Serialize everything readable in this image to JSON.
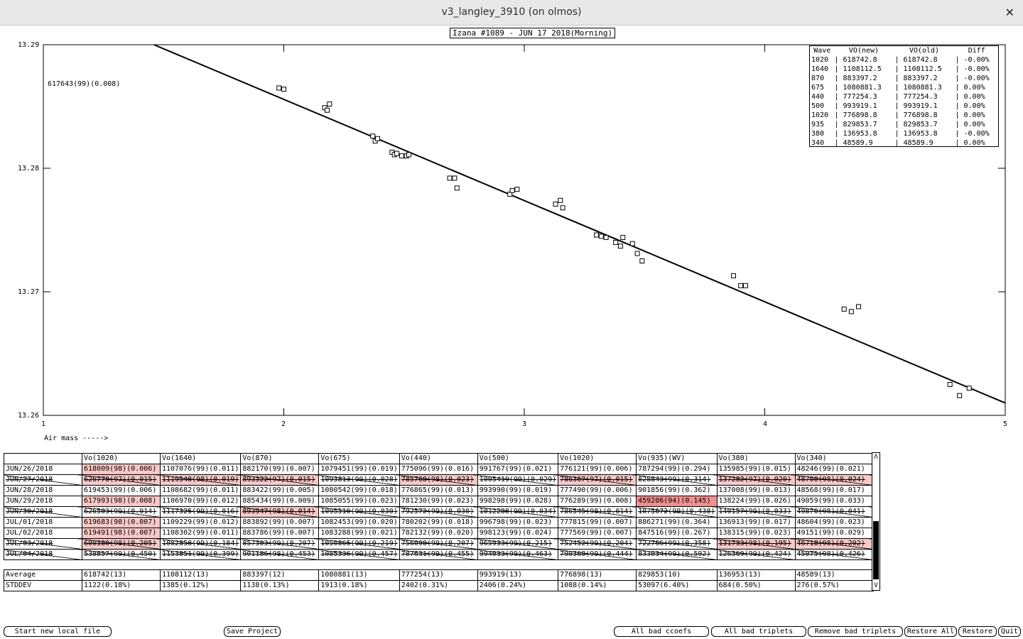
{
  "window": {
    "title": "v3_langley_3910 (on olmos)",
    "close_glyph": "✕"
  },
  "plot": {
    "title": "Izana #1089 - JUN 17 2018(Morning)",
    "annotation": "617643(99)(0.008)",
    "xlabel": "Air mass ----->",
    "yticks": [
      "13.29",
      "13.28",
      "13.27",
      "13.26"
    ],
    "xticks": [
      "1",
      "2",
      "3",
      "4",
      "5"
    ]
  },
  "chart_data": {
    "type": "scatter",
    "xlim": [
      1,
      5
    ],
    "ylim": [
      13.26,
      13.29
    ],
    "fit_line": [
      [
        1.46,
        13.29
      ],
      [
        5.0,
        13.261
      ]
    ],
    "points": [
      [
        1.98,
        13.2865
      ],
      [
        2.0,
        13.2864
      ],
      [
        2.17,
        13.2849
      ],
      [
        2.18,
        13.2847
      ],
      [
        2.19,
        13.2852
      ],
      [
        2.37,
        13.2826
      ],
      [
        2.38,
        13.2822
      ],
      [
        2.39,
        13.2824
      ],
      [
        2.45,
        13.2813
      ],
      [
        2.46,
        13.2811
      ],
      [
        2.47,
        13.2812
      ],
      [
        2.49,
        13.281
      ],
      [
        2.51,
        13.281
      ],
      [
        2.52,
        13.2811
      ],
      [
        2.69,
        13.2792
      ],
      [
        2.71,
        13.2792
      ],
      [
        2.72,
        13.2784
      ],
      [
        2.94,
        13.2779
      ],
      [
        2.95,
        13.2782
      ],
      [
        2.97,
        13.2783
      ],
      [
        3.13,
        13.2771
      ],
      [
        3.15,
        13.2774
      ],
      [
        3.16,
        13.2768
      ],
      [
        3.3,
        13.2746
      ],
      [
        3.32,
        13.2745
      ],
      [
        3.34,
        13.2744
      ],
      [
        3.38,
        13.274
      ],
      [
        3.4,
        13.2737
      ],
      [
        3.41,
        13.2744
      ],
      [
        3.45,
        13.2739
      ],
      [
        3.47,
        13.2731
      ],
      [
        3.49,
        13.2725
      ],
      [
        3.87,
        13.2713
      ],
      [
        3.9,
        13.2705
      ],
      [
        3.92,
        13.2705
      ],
      [
        4.33,
        13.2686
      ],
      [
        4.36,
        13.2684
      ],
      [
        4.39,
        13.2688
      ],
      [
        4.77,
        13.2625
      ],
      [
        4.81,
        13.2616
      ],
      [
        4.85,
        13.2622
      ]
    ]
  },
  "legend": {
    "headers": [
      "Wave",
      "VO(new)",
      "VO(old)",
      "Diff"
    ],
    "rows": [
      [
        "1020",
        "| 618742.8",
        "| 618742.8",
        "| -0.00%"
      ],
      [
        "1640",
        "| 1108112.5",
        "| 1108112.5",
        "| -0.00%"
      ],
      [
        "870",
        "| 883397.2",
        "| 883397.2",
        "| -0.00%"
      ],
      [
        "675",
        "| 1080881.3",
        "| 1080881.3",
        "| 0.00%"
      ],
      [
        "440",
        "| 777254.3",
        "| 777254.3",
        "| 0.00%"
      ],
      [
        "500",
        "| 993919.1",
        "| 993919.1",
        "| 0.00%"
      ],
      [
        "1020",
        "| 776898.8",
        "| 776898.8",
        "| 0.00%"
      ],
      [
        "935",
        "| 829853.7",
        "| 829853.7",
        "| 0.00%"
      ],
      [
        "380",
        "| 136953.8",
        "| 136953.8",
        "| -0.00%"
      ],
      [
        "340",
        "| 48589.9",
        "| 48589.9",
        "| 0.00%"
      ]
    ]
  },
  "grid": {
    "headers": [
      "",
      "Vo(1020)",
      "Vo(1640)",
      "Vo(870)",
      "Vo(675)",
      "Vo(440)",
      "Vo(500)",
      "Vo(1020)",
      "Vo(935)(WV)",
      "Vo(380)",
      "Vo(340)"
    ],
    "rows": [
      {
        "bad": false,
        "hl": [
          1
        ],
        "cells": [
          "JUN/26/2018",
          "618009(98)(0.006)",
          "1107076(99)(0.011)",
          "882170(99)(0.007)",
          "1079451(99)(0.019)",
          "775096(99)(0.016)",
          "991767(99)(0.021)",
          "776121(99)(0.006)",
          "787294(99)(0.294)",
          "135985(99)(0.015)",
          "48246(99)(0.021)"
        ]
      },
      {
        "bad": true,
        "hl": [
          1,
          2,
          3,
          5,
          7,
          9,
          10
        ],
        "cells": [
          "JUN/27/2018",
          "626778(97)(0.015)",
          "1119548(98)(0.019)",
          "893322(97)(0.015)",
          "1093813(99)(0.028)",
          "785768(98)(0.023)",
          "1005419(99)(0.029)",
          "786367(97)(0.015)",
          "828843(99)(0.314)",
          "137282(97)(0.020)",
          "48700(98)(0.024)"
        ]
      },
      {
        "bad": false,
        "hl": [],
        "cells": [
          "JUN/28/2018",
          "619453(99)(0.006)",
          "1108682(99)(0.011)",
          "883422(99)(0.005)",
          "1080542(99)(0.018)",
          "776865(99)(0.013)",
          "993990(99)(0.019)",
          "777490(99)(0.006)",
          "901856(99)(0.362)",
          "137008(99)(0.013)",
          "48568(99)(0.017)"
        ]
      },
      {
        "bad": false,
        "hl": [
          1
        ],
        "cells": [
          "JUN/29/2018",
          "617993(98)(0.008)",
          "1106970(99)(0.012)",
          "885434(99)(0.009)",
          "1085055(99)(0.023)",
          "781230(99)(0.023)",
          "998298(99)(0.028)",
          "776289(99)(0.008)",
          "459206(94)(0.145)",
          "138224(99)(0.026)",
          "49059(99)(0.033)"
        ]
      },
      {
        "bad": true,
        "hl": [
          3
        ],
        "cells": [
          "JUN/30/2018",
          "626503(99)(0.014)",
          "1117325(99)(0.016)",
          "893947(98)(0.014)",
          "1095510(99)(0.030)",
          "792572(99)(0.030)",
          "1012288(99)(0.034)",
          "786545(98)(0.014)",
          "1075672(99)(0.438)",
          "140157(99)(0.033)",
          "49876(98)(0.041)"
        ]
      },
      {
        "bad": false,
        "hl": [
          1
        ],
        "cells": [
          "JUL/01/2018",
          "619683(98)(0.007)",
          "1109229(99)(0.012)",
          "883892(99)(0.007)",
          "1082453(99)(0.020)",
          "780202(99)(0.018)",
          "996798(99)(0.023)",
          "777815(99)(0.007)",
          "886271(99)(0.364)",
          "136913(99)(0.017)",
          "48604(99)(0.023)"
        ]
      },
      {
        "bad": false,
        "hl": [
          1
        ],
        "cells": [
          "JUL/02/2018",
          "619491(98)(0.007)",
          "1108302(99)(0.011)",
          "883786(99)(0.007)",
          "1083288(99)(0.021)",
          "782132(99)(0.020)",
          "998123(99)(0.024)",
          "777569(99)(0.007)",
          "847516(99)(0.267)",
          "138315(99)(0.023)",
          "49151(99)(0.029)"
        ]
      },
      {
        "bad": true,
        "hl": [
          1,
          9,
          10
        ],
        "cells": [
          "JUL/03/2018",
          "600380(98)(0.205)",
          "1082858(99)(0.184)",
          "857303(99)(0.207)",
          "1050865(99)(0.219)",
          "756098(99)(0.207)",
          "965933(99)(0.215)",
          "752452(99)(0.204)",
          "722766(99)(0.358)",
          "131733(98)(0.195)",
          "46718(98)(0.202)"
        ]
      },
      {
        "bad": true,
        "hl": [],
        "cells": [
          "JUL/04/2018",
          "538857(99)(0.450)",
          "1153851(99)(0.399)",
          "901186(98)(0.453)",
          "1085336(99)(0.457)",
          "787631(99)(0.455)",
          "994033(99)(0.463)",
          "790368(99)(0.444)",
          "833034(99)(0.592)",
          "126369(99)(0.424)",
          "45075(98)(0.426)"
        ]
      }
    ],
    "average": [
      "Average",
      "618742(13)",
      "1108112(13)",
      "883397(12)",
      "1080881(13)",
      "777254(13)",
      "993919(13)",
      "776898(13)",
      "829853(10)",
      "136953(13)",
      "48589(13)"
    ],
    "stddev": [
      "STDDEV",
      "1122(0.18%)",
      "1385(0.12%)",
      "1138(0.13%)",
      "1913(0.18%)",
      "2402(0.31%)",
      "2406(0.24%)",
      "1088(0.14%)",
      "53097(6.40%)",
      " 684(0.50%)",
      " 276(0.57%)"
    ]
  },
  "scrollbar": {
    "up": "Λ",
    "down": "V"
  },
  "buttons": {
    "start_new": "Start new local file",
    "save_project": "Save Project",
    "all_bad_ccoefs": "All bad ccoefs",
    "all_bad_triplets": "All bad triplets",
    "remove_bad_triplets": "Remove bad triplets",
    "restore_all": "Restore All",
    "restore": "Restore",
    "quit": "Quit"
  }
}
